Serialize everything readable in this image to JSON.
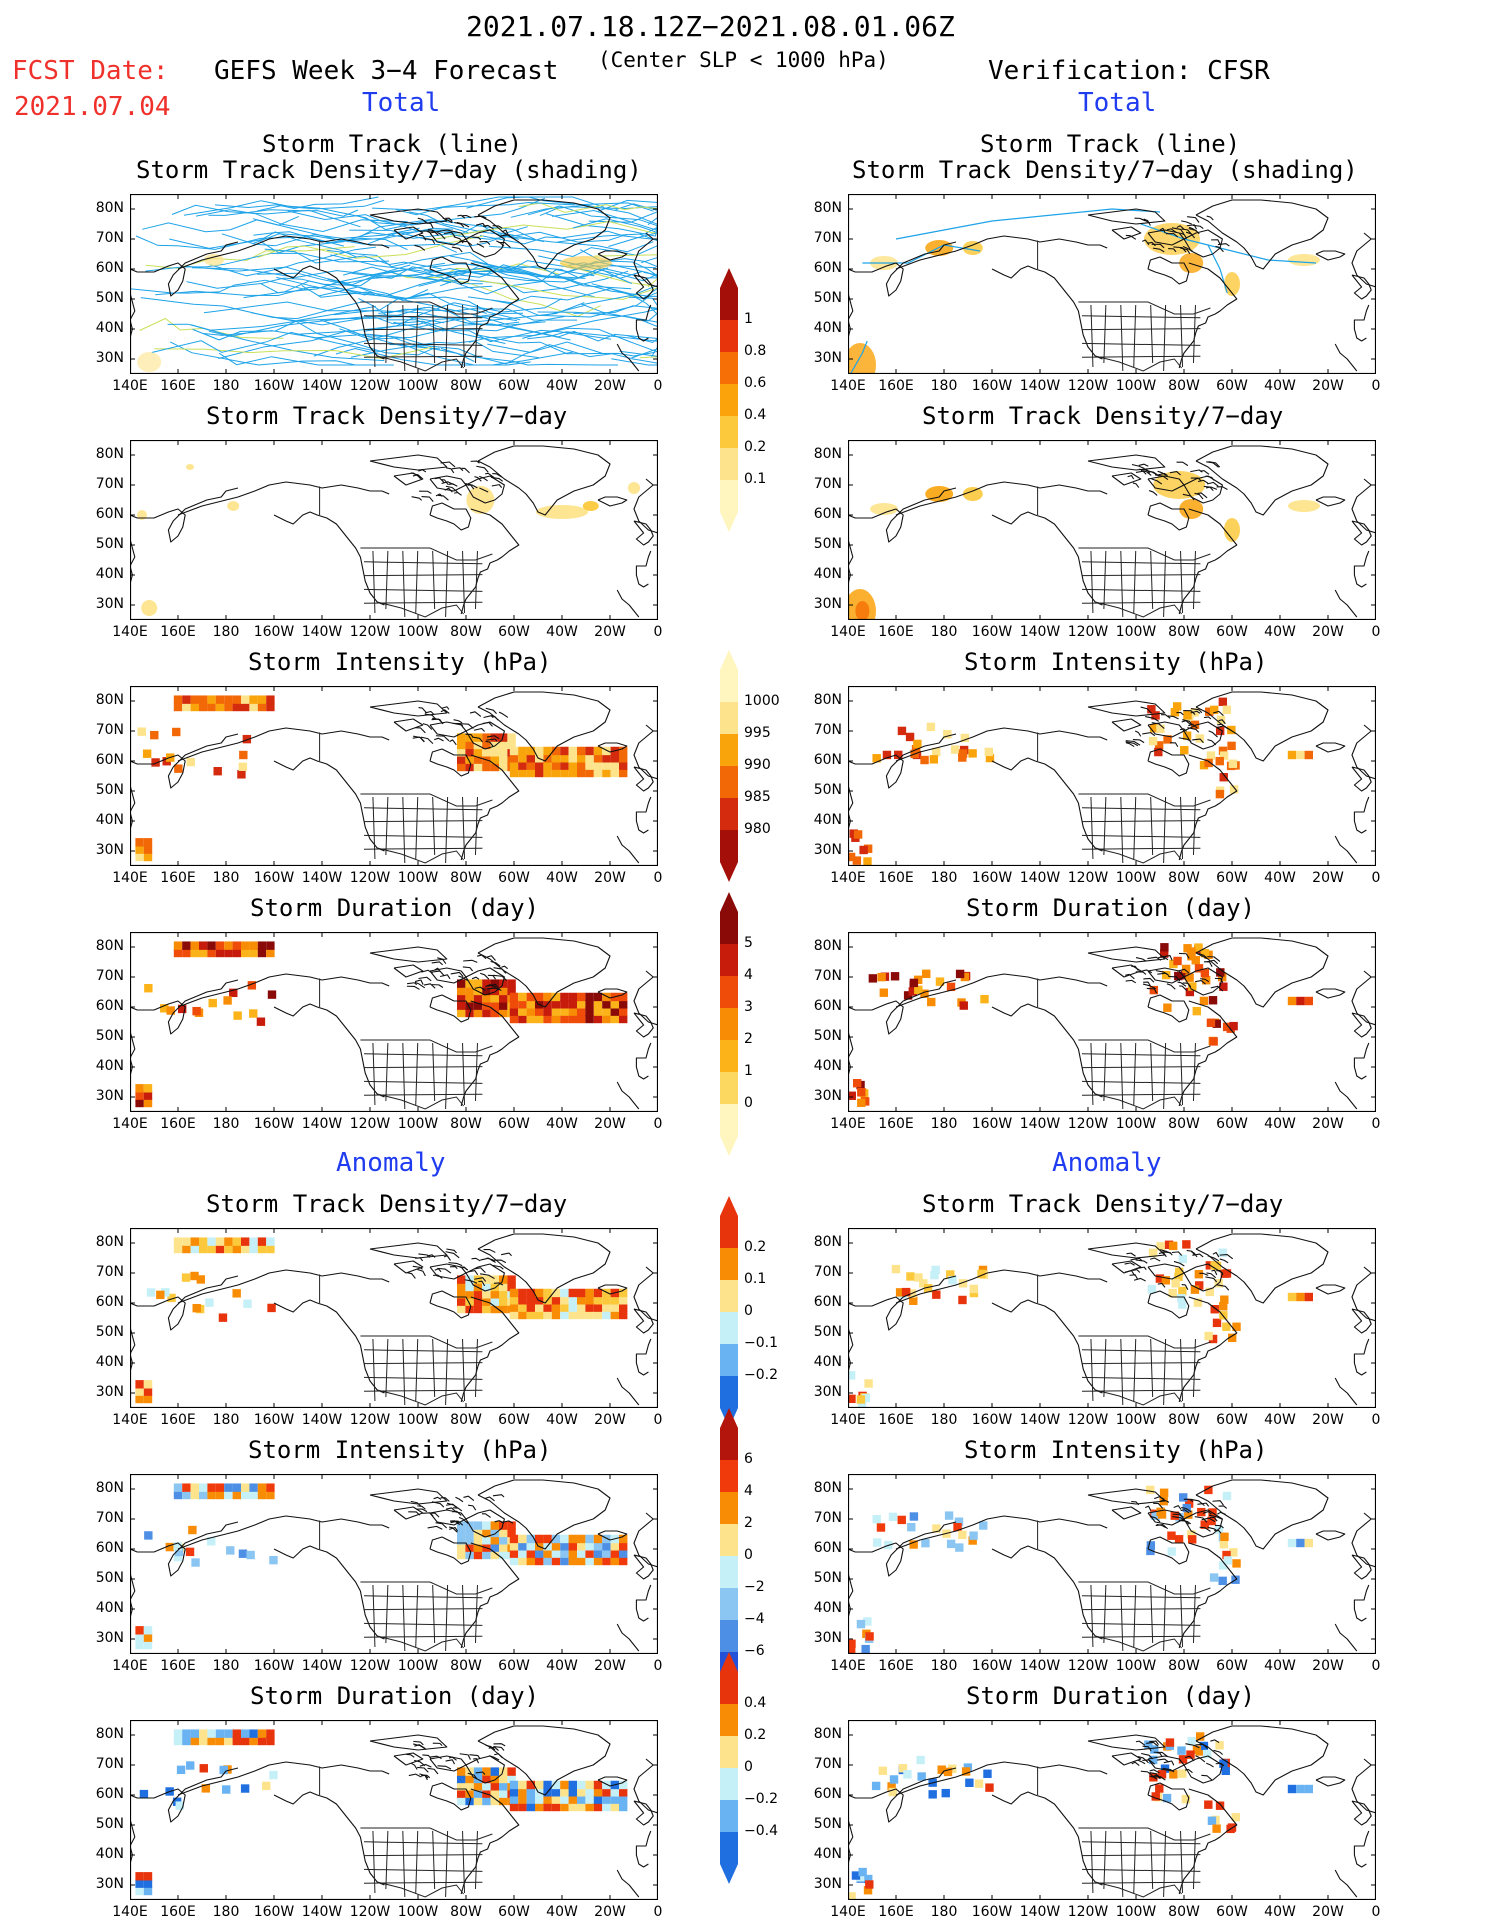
{
  "header": {
    "period": "2021.07.18.12Z−2021.08.01.06Z",
    "slp_note": "(Center SLP < 1000 hPa)",
    "fcst_label": "FCST Date:",
    "fcst_date": "2021.07.04",
    "left_title": "GEFS Week 3−4 Forecast",
    "right_title": "Verification: CFSR",
    "total_label": "Total",
    "anomaly_label": "Anomaly"
  },
  "axes": {
    "lat_ticks": [
      "80N",
      "70N",
      "60N",
      "50N",
      "40N",
      "30N"
    ],
    "lon_ticks": [
      "140E",
      "160E",
      "180",
      "160W",
      "140W",
      "120W",
      "100W",
      "80W",
      "60W",
      "40W",
      "20W",
      "0"
    ]
  },
  "panels": {
    "track_title_1": "Storm Track (line)",
    "track_title_2": "Storm Track Density/7−day (shading)",
    "density": "Storm Track Density/7−day",
    "intensity": "Storm Intensity (hPa)",
    "duration": "Storm Duration (day)"
  },
  "colorbars": {
    "density_total": {
      "labels": [
        "1",
        "0.8",
        "0.6",
        "0.4",
        "0.2",
        "0.1"
      ],
      "colors": [
        "#a50f0a",
        "#e8340c",
        "#f56f06",
        "#faa30a",
        "#fcc93c",
        "#fde48c",
        "#fff5be"
      ]
    },
    "intensity_total": {
      "labels": [
        "1000",
        "995",
        "990",
        "985",
        "980"
      ],
      "colors": [
        "#fff5be",
        "#fde48c",
        "#f9a40a",
        "#f26807",
        "#d42a0e",
        "#a50f0a"
      ]
    },
    "duration_total": {
      "labels": [
        "5",
        "4",
        "3",
        "2",
        "1",
        "0"
      ],
      "colors": [
        "#8a0a08",
        "#c71c0c",
        "#ef4b09",
        "#f88c05",
        "#fbb319",
        "#fdd861",
        "#fff5be"
      ]
    },
    "density_anom": {
      "labels": [
        "0.2",
        "0.1",
        "0",
        "−0.1",
        "−0.2"
      ],
      "colors": [
        "#e8340c",
        "#f88c05",
        "#fde48c",
        "#c5f0f8",
        "#6ab3f2",
        "#1f6fe0"
      ]
    },
    "intensity_anom": {
      "labels": [
        "6",
        "4",
        "2",
        "0",
        "−2",
        "−4",
        "−6"
      ],
      "colors": [
        "#b3140c",
        "#f13a0c",
        "#f88c05",
        "#fde48c",
        "#c5f0f8",
        "#8bc6f2",
        "#4e8fe6",
        "#2451d8"
      ]
    },
    "duration_anom": {
      "labels": [
        "0.4",
        "0.2",
        "0",
        "−0.2",
        "−0.4"
      ],
      "colors": [
        "#e8340c",
        "#f88c05",
        "#fde48c",
        "#c5f0f8",
        "#6ab3f2",
        "#1f6fe0"
      ]
    }
  },
  "colors": {
    "track_line": "#1ea3e8",
    "track_line_alt": "#c9e05a",
    "coast": "#111111"
  }
}
